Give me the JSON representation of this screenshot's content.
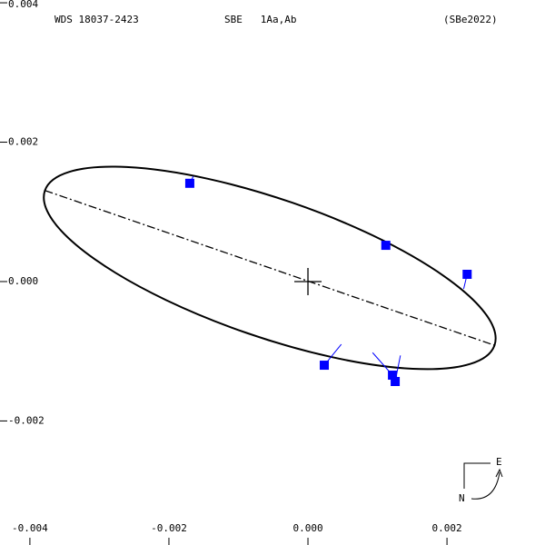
{
  "chart_data": {
    "type": "orbit",
    "title": "WDS 18037-2423",
    "subtitle": "SBE   1Aa,Ab",
    "reference": "(SBe2022)",
    "xlim": [
      -0.00443,
      0.00341
    ],
    "ylim": [
      -0.00378,
      0.00404
    ],
    "xticks": [
      -0.004,
      -0.002,
      {
        "value": 0,
        "label": "0.000"
      },
      0.002
    ],
    "yticks": [
      0.004,
      0.002,
      {
        "value": 0,
        "label": "0.000"
      },
      -0.002
    ],
    "orbit": {
      "center_x": -0.00055,
      "center_y": 0.000196,
      "semi_major": 0.00342,
      "semi_minor": 0.00099,
      "tilt_deg": -19,
      "color": "#000000"
    },
    "series": [
      {
        "color": "#0000ff",
        "x": [
          -0.0017,
          0.00112,
          0.00229,
          0.000235,
          0.001216,
          0.001255
        ],
        "y": [
          0.00141,
          0.00052,
          0.000104,
          -0.0012,
          -0.001343,
          -0.001434
        ],
        "orbit_x": [
          -0.00165,
          0.00112,
          0.00224,
          0.00048,
          0.00093,
          0.00133
        ],
        "orbit_y": [
          0.00151,
          0.00052,
          -0.000104,
          -0.0009,
          -0.00102,
          -0.00106
        ]
      }
    ],
    "compass": {
      "east": "E",
      "north": "N"
    }
  }
}
